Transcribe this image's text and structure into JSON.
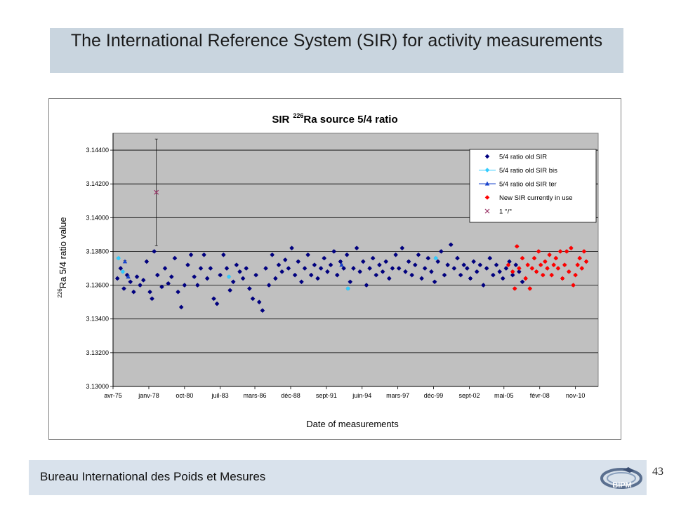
{
  "slide": {
    "title": "The International Reference System (SIR) for activity measurements",
    "footer": "Bureau International des Poids et Mesures",
    "page_number": "43",
    "logo_text": "BIPM"
  },
  "colors": {
    "title_band": "#c9d5df",
    "plot_bg": "#c0c0c0",
    "old_sir": "#000080",
    "old_sir_bis": "#33ccff",
    "old_sir_ter": "#1a44cc",
    "new_sir": "#ff0000",
    "special": "#993366"
  },
  "chart_data": {
    "type": "scatter",
    "title_main": "SIR",
    "title_sup": "226",
    "title_rest": "Ra source 5/4 ratio",
    "xlabel": "Date of measurements",
    "ylabel_sup": "226",
    "ylabel_text": "Ra 5/4 ratio value",
    "ylim": [
      3.13,
      3.145
    ],
    "yticks": [
      "3.13000",
      "3.13200",
      "3.13400",
      "3.13600",
      "3.13800",
      "3.14000",
      "3.14200",
      "3.14400"
    ],
    "xlim": [
      "1975-04-01",
      "2012-08-01"
    ],
    "xticks": [
      {
        "label": "avr-75",
        "date": "1975-04-01"
      },
      {
        "label": "janv-78",
        "date": "1978-01-01"
      },
      {
        "label": "oct-80",
        "date": "1980-10-01"
      },
      {
        "label": "juil-83",
        "date": "1983-07-01"
      },
      {
        "label": "mars-86",
        "date": "1986-03-01"
      },
      {
        "label": "déc-88",
        "date": "1988-12-01"
      },
      {
        "label": "sept-91",
        "date": "1991-09-01"
      },
      {
        "label": "juin-94",
        "date": "1994-06-01"
      },
      {
        "label": "mars-97",
        "date": "1997-03-01"
      },
      {
        "label": "déc-99",
        "date": "1999-12-01"
      },
      {
        "label": "sept-02",
        "date": "2002-09-01"
      },
      {
        "label": "mai-05",
        "date": "2005-05-01"
      },
      {
        "label": "févr-08",
        "date": "2008-02-01"
      },
      {
        "label": "nov-10",
        "date": "2010-11-01"
      }
    ],
    "grid": "horizontal",
    "legend_position": "top-right",
    "legend": [
      {
        "name": "5/4 ratio old SIR",
        "marker": "diamond",
        "color": "#000080"
      },
      {
        "name": "5/4 ratio old SIR bis",
        "marker": "diamond-line",
        "color": "#33ccff"
      },
      {
        "name": "5/4 ratio old SIR ter",
        "marker": "triangle-line",
        "color": "#1a44cc"
      },
      {
        "name": "New SIR currently in use",
        "marker": "diamond",
        "color": "#ff0000"
      },
      {
        "name": "1 °/°",
        "marker": "x",
        "color": "#993366"
      }
    ],
    "series": [
      {
        "name": "5/4 ratio old SIR",
        "marker": "diamond",
        "color": "#000080",
        "error": 6e-05,
        "points": [
          [
            "1975-08-01",
            3.1364
          ],
          [
            "1975-11-01",
            3.137
          ],
          [
            "1976-02-01",
            3.1358
          ],
          [
            "1976-05-01",
            3.1366
          ],
          [
            "1976-08-01",
            3.1362
          ],
          [
            "1976-11-01",
            3.1356
          ],
          [
            "1977-02-01",
            3.1365
          ],
          [
            "1977-05-01",
            3.136
          ],
          [
            "1977-08-01",
            3.1363
          ],
          [
            "1977-11-01",
            3.1374
          ],
          [
            "1978-02-01",
            3.1356
          ],
          [
            "1978-04-01",
            3.1352
          ],
          [
            "1978-06-01",
            3.138
          ],
          [
            "1978-09-01",
            3.1366
          ],
          [
            "1979-01-01",
            3.1359
          ],
          [
            "1979-04-01",
            3.137
          ],
          [
            "1979-07-01",
            3.1361
          ],
          [
            "1979-10-01",
            3.1365
          ],
          [
            "1980-01-01",
            3.1376
          ],
          [
            "1980-04-01",
            3.1356
          ],
          [
            "1980-07-01",
            3.1347
          ],
          [
            "1980-10-01",
            3.136
          ],
          [
            "1981-01-01",
            3.1372
          ],
          [
            "1981-04-01",
            3.1378
          ],
          [
            "1981-07-01",
            3.1365
          ],
          [
            "1981-10-01",
            3.136
          ],
          [
            "1982-01-01",
            3.137
          ],
          [
            "1982-04-01",
            3.1378
          ],
          [
            "1982-07-01",
            3.1364
          ],
          [
            "1982-10-01",
            3.137
          ],
          [
            "1983-01-01",
            3.1352
          ],
          [
            "1983-04-01",
            3.1349
          ],
          [
            "1983-07-01",
            3.1366
          ],
          [
            "1983-10-01",
            3.1378
          ],
          [
            "1984-01-01",
            3.137
          ],
          [
            "1984-04-01",
            3.1357
          ],
          [
            "1984-07-01",
            3.1362
          ],
          [
            "1984-10-01",
            3.1372
          ],
          [
            "1985-01-01",
            3.1368
          ],
          [
            "1985-04-01",
            3.1364
          ],
          [
            "1985-07-01",
            3.137
          ],
          [
            "1985-10-01",
            3.1358
          ],
          [
            "1986-01-01",
            3.1352
          ],
          [
            "1986-04-01",
            3.1366
          ],
          [
            "1986-07-01",
            3.135
          ],
          [
            "1986-10-01",
            3.1345
          ],
          [
            "1987-01-01",
            3.137
          ],
          [
            "1987-04-01",
            3.136
          ],
          [
            "1987-07-01",
            3.1378
          ],
          [
            "1987-10-01",
            3.1364
          ],
          [
            "1988-01-01",
            3.1372
          ],
          [
            "1988-04-01",
            3.1368
          ],
          [
            "1988-07-01",
            3.1375
          ],
          [
            "1988-10-01",
            3.137
          ],
          [
            "1989-01-01",
            3.1382
          ],
          [
            "1989-04-01",
            3.1366
          ],
          [
            "1989-07-01",
            3.1374
          ],
          [
            "1989-10-01",
            3.1362
          ],
          [
            "1990-01-01",
            3.137
          ],
          [
            "1990-04-01",
            3.1378
          ],
          [
            "1990-07-01",
            3.1366
          ],
          [
            "1990-10-01",
            3.1372
          ],
          [
            "1991-01-01",
            3.1364
          ],
          [
            "1991-04-01",
            3.137
          ],
          [
            "1991-07-01",
            3.1376
          ],
          [
            "1991-10-01",
            3.1368
          ],
          [
            "1992-01-01",
            3.1372
          ],
          [
            "1992-04-01",
            3.138
          ],
          [
            "1992-07-01",
            3.1366
          ],
          [
            "1992-10-01",
            3.1374
          ],
          [
            "1993-01-01",
            3.137
          ],
          [
            "1993-04-01",
            3.1378
          ],
          [
            "1993-07-01",
            3.1362
          ],
          [
            "1993-10-01",
            3.137
          ],
          [
            "1994-01-01",
            3.1382
          ],
          [
            "1994-04-01",
            3.1368
          ],
          [
            "1994-07-01",
            3.1374
          ],
          [
            "1994-10-01",
            3.136
          ],
          [
            "1995-01-01",
            3.137
          ],
          [
            "1995-04-01",
            3.1376
          ],
          [
            "1995-07-01",
            3.1366
          ],
          [
            "1995-10-01",
            3.1372
          ],
          [
            "1996-01-01",
            3.1368
          ],
          [
            "1996-04-01",
            3.1374
          ],
          [
            "1996-07-01",
            3.1364
          ],
          [
            "1996-10-01",
            3.137
          ],
          [
            "1997-01-01",
            3.1378
          ],
          [
            "1997-04-01",
            3.137
          ],
          [
            "1997-07-01",
            3.1382
          ],
          [
            "1997-10-01",
            3.1368
          ],
          [
            "1998-01-01",
            3.1374
          ],
          [
            "1998-04-01",
            3.1366
          ],
          [
            "1998-07-01",
            3.1372
          ],
          [
            "1998-10-01",
            3.1378
          ],
          [
            "1999-01-01",
            3.1364
          ],
          [
            "1999-04-01",
            3.137
          ],
          [
            "1999-07-01",
            3.1376
          ],
          [
            "1999-10-01",
            3.1368
          ],
          [
            "2000-01-01",
            3.1362
          ],
          [
            "2000-04-01",
            3.1374
          ],
          [
            "2000-07-01",
            3.138
          ],
          [
            "2000-10-01",
            3.1366
          ],
          [
            "2001-01-01",
            3.1372
          ],
          [
            "2001-04-01",
            3.1384
          ],
          [
            "2001-07-01",
            3.137
          ],
          [
            "2001-10-01",
            3.1376
          ],
          [
            "2002-01-01",
            3.1366
          ],
          [
            "2002-04-01",
            3.1372
          ],
          [
            "2002-07-01",
            3.137
          ],
          [
            "2002-10-01",
            3.1364
          ],
          [
            "2003-01-01",
            3.1374
          ],
          [
            "2003-04-01",
            3.1368
          ],
          [
            "2003-07-01",
            3.1372
          ],
          [
            "2003-10-01",
            3.136
          ],
          [
            "2004-01-01",
            3.137
          ],
          [
            "2004-04-01",
            3.1376
          ],
          [
            "2004-07-01",
            3.1366
          ],
          [
            "2004-10-01",
            3.1372
          ],
          [
            "2005-01-01",
            3.1368
          ],
          [
            "2005-04-01",
            3.1364
          ],
          [
            "2005-07-01",
            3.137
          ],
          [
            "2005-10-01",
            3.1374
          ],
          [
            "2006-01-01",
            3.1366
          ],
          [
            "2006-04-01",
            3.1372
          ],
          [
            "2006-07-01",
            3.1368
          ],
          [
            "2006-10-01",
            3.1362
          ]
        ]
      },
      {
        "name": "5/4 ratio old SIR bis",
        "marker": "diamond",
        "color": "#33ccff",
        "error": 6e-05,
        "points": [
          [
            "1975-09-01",
            3.1376
          ],
          [
            "1976-01-01",
            3.1368
          ],
          [
            "1984-03-01",
            3.1365
          ],
          [
            "1993-05-01",
            3.1358
          ],
          [
            "2000-02-01",
            3.1376
          ]
        ]
      },
      {
        "name": "5/4 ratio old SIR ter",
        "marker": "triangle",
        "color": "#1a44cc",
        "error": 6e-05,
        "points": [
          [
            "1976-03-01",
            3.1374
          ],
          [
            "1976-06-01",
            3.1365
          ],
          [
            "1992-11-01",
            3.1372
          ]
        ]
      },
      {
        "name": "New SIR currently in use",
        "marker": "diamond",
        "color": "#ff0000",
        "error": 6e-05,
        "points": [
          [
            "2005-09-01",
            3.1372
          ],
          [
            "2006-01-01",
            3.1368
          ],
          [
            "2006-03-01",
            3.1358
          ],
          [
            "2006-05-01",
            3.1383
          ],
          [
            "2006-07-01",
            3.137
          ],
          [
            "2006-10-01",
            3.1376
          ],
          [
            "2007-01-01",
            3.1364
          ],
          [
            "2007-03-01",
            3.1372
          ],
          [
            "2007-05-01",
            3.1358
          ],
          [
            "2007-07-01",
            3.137
          ],
          [
            "2007-09-01",
            3.1376
          ],
          [
            "2007-11-01",
            3.1368
          ],
          [
            "2008-01-01",
            3.138
          ],
          [
            "2008-03-01",
            3.1372
          ],
          [
            "2008-05-01",
            3.1366
          ],
          [
            "2008-07-01",
            3.1374
          ],
          [
            "2008-09-01",
            3.137
          ],
          [
            "2008-11-01",
            3.1378
          ],
          [
            "2009-01-01",
            3.1366
          ],
          [
            "2009-03-01",
            3.1372
          ],
          [
            "2009-05-01",
            3.1376
          ],
          [
            "2009-07-01",
            3.137
          ],
          [
            "2009-09-01",
            3.138
          ],
          [
            "2009-11-01",
            3.1364
          ],
          [
            "2010-01-01",
            3.1372
          ],
          [
            "2010-03-01",
            3.138
          ],
          [
            "2010-05-01",
            3.1368
          ],
          [
            "2010-07-01",
            3.1382
          ],
          [
            "2010-09-01",
            3.136
          ],
          [
            "2010-11-01",
            3.1366
          ],
          [
            "2011-01-01",
            3.1372
          ],
          [
            "2011-03-01",
            3.1376
          ],
          [
            "2011-05-01",
            3.137
          ],
          [
            "2011-07-01",
            3.138
          ],
          [
            "2011-09-01",
            3.1374
          ]
        ]
      },
      {
        "name": "1 °/°",
        "marker": "x",
        "color": "#993366",
        "error": 0.00316,
        "points": [
          [
            "1978-08-01",
            3.1415
          ]
        ]
      }
    ]
  }
}
